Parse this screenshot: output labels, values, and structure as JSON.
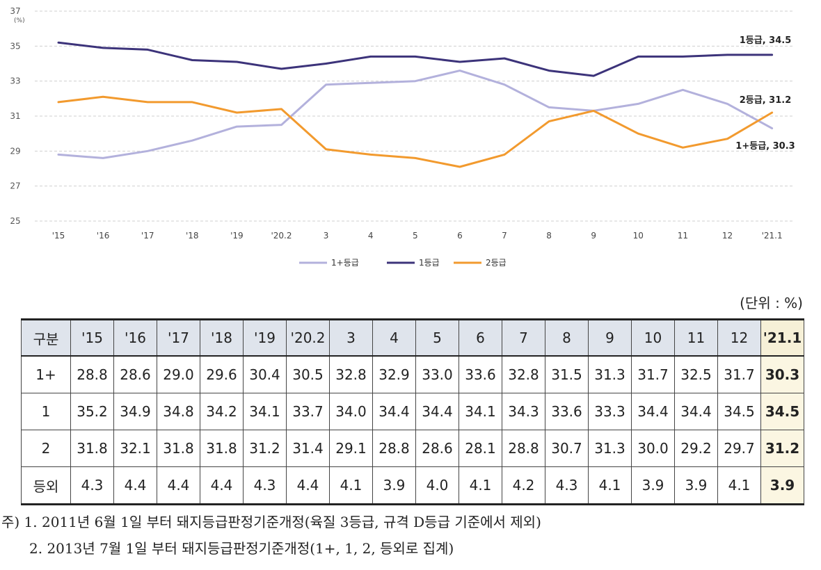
{
  "chart_data": {
    "type": "line",
    "x": [
      "'15",
      "'16",
      "'17",
      "'18",
      "'19",
      "'20.2",
      "3",
      "4",
      "5",
      "6",
      "7",
      "8",
      "9",
      "10",
      "11",
      "12",
      "'21.1"
    ],
    "y_ticks": [
      25,
      27,
      29,
      31,
      33,
      35,
      37
    ],
    "y_unit": "(%)",
    "ylim": [
      25,
      37
    ],
    "grid": true,
    "legend_position": "bottom",
    "series": [
      {
        "name": "1+등급",
        "color": "#b3b1dc",
        "values": [
          28.8,
          28.6,
          29.0,
          29.6,
          30.4,
          30.5,
          32.8,
          32.9,
          33.0,
          33.6,
          32.8,
          31.5,
          31.3,
          31.7,
          32.5,
          31.7,
          30.3
        ],
        "end_label": "1+등급, 30.3"
      },
      {
        "name": "1등급",
        "color": "#3c337a",
        "values": [
          35.2,
          34.9,
          34.8,
          34.2,
          34.1,
          33.7,
          34.0,
          34.4,
          34.4,
          34.1,
          34.3,
          33.6,
          33.3,
          34.4,
          34.4,
          34.5,
          34.5
        ],
        "end_label": "1등급, 34.5"
      },
      {
        "name": "2등급",
        "color": "#f29a2e",
        "values": [
          31.8,
          32.1,
          31.8,
          31.8,
          31.2,
          31.4,
          29.1,
          28.8,
          28.6,
          28.1,
          28.8,
          30.7,
          31.3,
          30.0,
          29.2,
          29.7,
          31.2
        ],
        "end_label": "2등급, 31.2"
      }
    ]
  },
  "table": {
    "unit": "(단위 : %)",
    "header_label": "구분",
    "columns": [
      "'15",
      "'16",
      "'17",
      "'18",
      "'19",
      "'20.2",
      "3",
      "4",
      "5",
      "6",
      "7",
      "8",
      "9",
      "10",
      "11",
      "12",
      "'21.1"
    ],
    "rows": [
      {
        "label": "1+",
        "values": [
          "28.8",
          "28.6",
          "29.0",
          "29.6",
          "30.4",
          "30.5",
          "32.8",
          "32.9",
          "33.0",
          "33.6",
          "32.8",
          "31.5",
          "31.3",
          "31.7",
          "32.5",
          "31.7",
          "30.3"
        ]
      },
      {
        "label": "1",
        "values": [
          "35.2",
          "34.9",
          "34.8",
          "34.2",
          "34.1",
          "33.7",
          "34.0",
          "34.4",
          "34.4",
          "34.1",
          "34.3",
          "33.6",
          "33.3",
          "34.4",
          "34.4",
          "34.5",
          "34.5"
        ]
      },
      {
        "label": "2",
        "values": [
          "31.8",
          "32.1",
          "31.8",
          "31.8",
          "31.2",
          "31.4",
          "29.1",
          "28.8",
          "28.6",
          "28.1",
          "28.8",
          "30.7",
          "31.3",
          "30.0",
          "29.2",
          "29.7",
          "31.2"
        ]
      },
      {
        "label": "등외",
        "values": [
          "4.3",
          "4.4",
          "4.4",
          "4.4",
          "4.3",
          "4.4",
          "4.1",
          "3.9",
          "4.0",
          "4.1",
          "4.2",
          "4.3",
          "4.1",
          "3.9",
          "3.9",
          "4.1",
          "3.9"
        ]
      }
    ]
  },
  "notes": {
    "line1": "주) 1. 2011년 6월 1일 부터 돼지등급판정기준개정(육질 3등급, 규격 D등급 기준에서 제외)",
    "line2": "2. 2013년 7월 1일 부터 돼지등급판정기준개정(1+, 1, 2, 등외로 집계)"
  }
}
